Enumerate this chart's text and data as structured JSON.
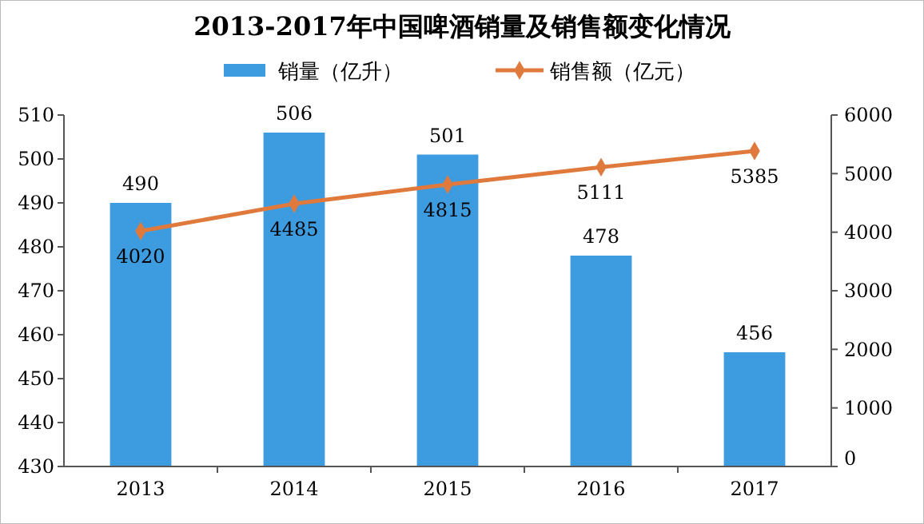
{
  "chart_data": {
    "type": "bar",
    "title": "2013-2017年中国啤酒销量及销售额变化情况",
    "categories": [
      "2013",
      "2014",
      "2015",
      "2016",
      "2017"
    ],
    "series": [
      {
        "name": "销量（亿升）",
        "color": "#3d9be0",
        "values": [
          490,
          506,
          501,
          478,
          456
        ]
      },
      {
        "name": "销售额（亿元）",
        "color": "#e07a3c",
        "values": [
          4020,
          4485,
          4815,
          5111,
          5385
        ],
        "type": "line",
        "axis": "y2"
      }
    ],
    "ylim": [
      430,
      510
    ],
    "yticks": [
      430,
      440,
      450,
      460,
      470,
      480,
      490,
      500,
      510
    ],
    "y2lim": [
      0,
      6000
    ],
    "y2ticks": [
      0,
      1000,
      2000,
      3000,
      4000,
      5000,
      6000
    ],
    "data_labels": true,
    "legend": "top",
    "marker": "diamond",
    "grid": false
  }
}
